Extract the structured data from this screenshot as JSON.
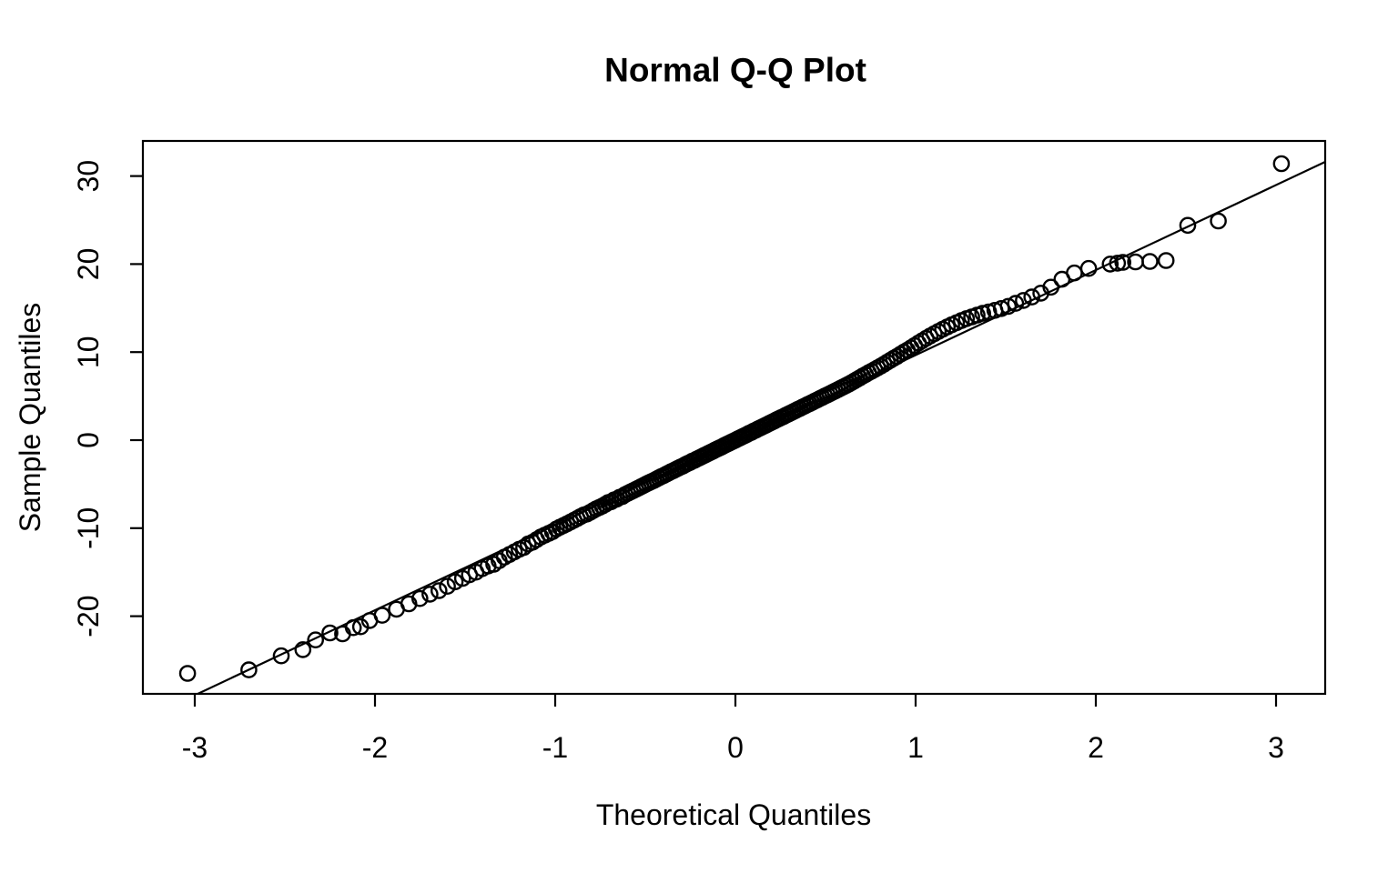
{
  "chart_data": {
    "type": "scatter",
    "title": "Normal Q-Q Plot",
    "xlabel": "Theoretical Quantiles",
    "ylabel": "Sample Quantiles",
    "x_ticks": [
      -3,
      -2,
      -1,
      0,
      1,
      2,
      3
    ],
    "y_ticks": [
      -20,
      -10,
      0,
      10,
      20,
      30
    ],
    "xlim": [
      -3.29,
      3.27
    ],
    "ylim": [
      -28.8,
      34.0
    ],
    "grid": false,
    "legend": "none",
    "marker": "open-circle",
    "colors": {
      "points": "#000000",
      "line": "#000000",
      "axes": "#000000",
      "background": "#ffffff"
    },
    "reference_line": {
      "slope": 9.66,
      "intercept": 0.0
    },
    "points": [
      [
        -3.04,
        -26.5
      ],
      [
        -2.7,
        -26.1
      ],
      [
        -2.52,
        -24.5
      ],
      [
        -2.4,
        -23.8
      ],
      [
        -2.33,
        -22.7
      ],
      [
        -2.25,
        -21.9
      ],
      [
        -2.18,
        -22.0
      ],
      [
        -2.12,
        -21.3
      ],
      [
        -2.08,
        -21.2
      ],
      [
        -2.03,
        -20.5
      ],
      [
        -1.96,
        -19.9
      ],
      [
        -1.881,
        -19.2
      ],
      [
        -1.812,
        -18.6
      ],
      [
        -1.751,
        -18.0
      ],
      [
        -1.695,
        -17.5
      ],
      [
        -1.645,
        -17.1
      ],
      [
        -1.598,
        -16.6
      ],
      [
        -1.555,
        -16.1
      ],
      [
        -1.514,
        -15.7
      ],
      [
        -1.476,
        -15.3
      ],
      [
        -1.44,
        -15.0
      ],
      [
        -1.405,
        -14.6
      ],
      [
        -1.372,
        -14.3
      ],
      [
        -1.341,
        -14.1
      ],
      [
        -1.311,
        -13.7
      ],
      [
        -1.282,
        -13.3
      ],
      [
        -1.254,
        -13.0
      ],
      [
        -1.227,
        -12.7
      ],
      [
        -1.2,
        -12.4
      ],
      [
        -1.175,
        -12.2
      ],
      [
        -1.15,
        -11.8
      ],
      [
        -1.126,
        -11.6
      ],
      [
        -1.103,
        -11.3
      ],
      [
        -1.08,
        -11.0
      ],
      [
        -1.058,
        -10.8
      ],
      [
        -1.036,
        -10.6
      ],
      [
        -1.015,
        -10.4
      ],
      [
        -0.994,
        -10.1
      ],
      [
        -0.974,
        -9.9
      ],
      [
        -0.954,
        -9.7
      ],
      [
        -0.935,
        -9.5
      ],
      [
        -0.915,
        -9.3
      ],
      [
        -0.896,
        -9.1
      ],
      [
        -0.878,
        -8.9
      ],
      [
        -0.86,
        -8.7
      ],
      [
        -0.842,
        -8.5
      ],
      [
        -0.824,
        -8.4
      ],
      [
        -0.806,
        -8.2
      ],
      [
        -0.789,
        -8.0
      ],
      [
        -0.772,
        -7.8
      ],
      [
        -0.755,
        -7.65
      ],
      [
        -0.739,
        -7.5
      ],
      [
        -0.722,
        -7.3
      ],
      [
        -0.706,
        -7.1
      ],
      [
        -0.69,
        -7.0
      ],
      [
        -0.674,
        -6.8
      ],
      [
        -0.659,
        -6.7
      ],
      [
        -0.643,
        -6.5
      ],
      [
        -0.628,
        -6.4
      ],
      [
        -0.613,
        -6.2
      ],
      [
        -0.598,
        -6.05
      ],
      [
        -0.583,
        -5.9
      ],
      [
        -0.568,
        -5.75
      ],
      [
        -0.553,
        -5.6
      ],
      [
        -0.539,
        -5.45
      ],
      [
        -0.524,
        -5.3
      ],
      [
        -0.51,
        -5.15
      ],
      [
        -0.496,
        -5.0
      ],
      [
        -0.482,
        -4.86
      ],
      [
        -0.468,
        -4.73
      ],
      [
        -0.454,
        -4.6
      ],
      [
        -0.44,
        -4.45
      ],
      [
        -0.426,
        -4.3
      ],
      [
        -0.412,
        -4.15
      ],
      [
        -0.399,
        -4.03
      ],
      [
        -0.385,
        -3.88
      ],
      [
        -0.372,
        -3.75
      ],
      [
        -0.358,
        -3.6
      ],
      [
        -0.345,
        -3.48
      ],
      [
        -0.332,
        -3.34
      ],
      [
        -0.319,
        -3.2
      ],
      [
        -0.305,
        -3.07
      ],
      [
        -0.292,
        -2.94
      ],
      [
        -0.279,
        -2.8
      ],
      [
        -0.266,
        -2.67
      ],
      [
        -0.253,
        -2.55
      ],
      [
        -0.24,
        -2.4
      ],
      [
        -0.228,
        -2.3
      ],
      [
        -0.215,
        -2.16
      ],
      [
        -0.202,
        -2.03
      ],
      [
        -0.189,
        -1.9
      ],
      [
        -0.176,
        -1.77
      ],
      [
        -0.164,
        -1.65
      ],
      [
        -0.151,
        -1.52
      ],
      [
        -0.138,
        -1.38
      ],
      [
        -0.126,
        -1.27
      ],
      [
        -0.113,
        -1.13
      ],
      [
        -0.1,
        -1.0
      ],
      [
        -0.088,
        -0.88
      ],
      [
        -0.075,
        -0.76
      ],
      [
        -0.063,
        -0.63
      ],
      [
        -0.05,
        -0.5
      ],
      [
        -0.038,
        -0.38
      ],
      [
        -0.025,
        -0.25
      ],
      [
        -0.013,
        -0.13
      ],
      [
        0.0,
        0.0
      ],
      [
        0.013,
        0.13
      ],
      [
        0.025,
        0.25
      ],
      [
        0.038,
        0.38
      ],
      [
        0.05,
        0.5
      ],
      [
        0.063,
        0.63
      ],
      [
        0.075,
        0.76
      ],
      [
        0.088,
        0.88
      ],
      [
        0.1,
        1.01
      ],
      [
        0.113,
        1.13
      ],
      [
        0.126,
        1.27
      ],
      [
        0.138,
        1.38
      ],
      [
        0.151,
        1.52
      ],
      [
        0.164,
        1.65
      ],
      [
        0.176,
        1.77
      ],
      [
        0.189,
        1.9
      ],
      [
        0.202,
        2.03
      ],
      [
        0.215,
        2.16
      ],
      [
        0.228,
        2.3
      ],
      [
        0.24,
        2.42
      ],
      [
        0.253,
        2.55
      ],
      [
        0.266,
        2.67
      ],
      [
        0.279,
        2.81
      ],
      [
        0.292,
        2.93
      ],
      [
        0.305,
        3.07
      ],
      [
        0.319,
        3.21
      ],
      [
        0.332,
        3.34
      ],
      [
        0.345,
        3.48
      ],
      [
        0.358,
        3.6
      ],
      [
        0.372,
        3.75
      ],
      [
        0.385,
        3.87
      ],
      [
        0.399,
        4.02
      ],
      [
        0.412,
        4.14
      ],
      [
        0.426,
        4.29
      ],
      [
        0.44,
        4.43
      ],
      [
        0.454,
        4.57
      ],
      [
        0.468,
        4.72
      ],
      [
        0.482,
        4.85
      ],
      [
        0.496,
        5.0
      ],
      [
        0.51,
        5.13
      ],
      [
        0.524,
        5.28
      ],
      [
        0.539,
        5.43
      ],
      [
        0.553,
        5.58
      ],
      [
        0.568,
        5.73
      ],
      [
        0.583,
        5.89
      ],
      [
        0.598,
        6.04
      ],
      [
        0.613,
        6.2
      ],
      [
        0.628,
        6.35
      ],
      [
        0.643,
        6.52
      ],
      [
        0.659,
        6.7
      ],
      [
        0.674,
        6.89
      ],
      [
        0.69,
        7.08
      ],
      [
        0.706,
        7.27
      ],
      [
        0.722,
        7.45
      ],
      [
        0.739,
        7.65
      ],
      [
        0.755,
        7.82
      ],
      [
        0.772,
        8.02
      ],
      [
        0.789,
        8.21
      ],
      [
        0.806,
        8.4
      ],
      [
        0.824,
        8.63
      ],
      [
        0.842,
        8.85
      ],
      [
        0.86,
        9.07
      ],
      [
        0.878,
        9.29
      ],
      [
        0.896,
        9.5
      ],
      [
        0.915,
        9.75
      ],
      [
        0.935,
        10.0
      ],
      [
        0.954,
        10.23
      ],
      [
        0.974,
        10.49
      ],
      [
        0.994,
        10.74
      ],
      [
        1.015,
        11.02
      ],
      [
        1.036,
        11.28
      ],
      [
        1.058,
        11.56
      ],
      [
        1.08,
        11.82
      ],
      [
        1.103,
        12.09
      ],
      [
        1.126,
        12.34
      ],
      [
        1.15,
        12.6
      ],
      [
        1.175,
        12.86
      ],
      [
        1.2,
        13.1
      ],
      [
        1.227,
        13.34
      ],
      [
        1.254,
        13.57
      ],
      [
        1.282,
        13.8
      ],
      [
        1.311,
        14.0
      ],
      [
        1.341,
        14.2
      ],
      [
        1.372,
        14.4
      ],
      [
        1.405,
        14.57
      ],
      [
        1.44,
        14.74
      ],
      [
        1.476,
        14.95
      ],
      [
        1.514,
        15.2
      ],
      [
        1.555,
        15.54
      ],
      [
        1.598,
        15.87
      ],
      [
        1.645,
        16.26
      ],
      [
        1.695,
        16.69
      ],
      [
        1.751,
        17.38
      ],
      [
        1.812,
        18.27
      ],
      [
        1.881,
        18.99
      ],
      [
        1.96,
        19.5
      ],
      [
        2.08,
        20.0
      ],
      [
        2.12,
        20.1
      ],
      [
        2.15,
        20.2
      ],
      [
        2.22,
        20.25
      ],
      [
        2.3,
        20.3
      ],
      [
        2.39,
        20.4
      ],
      [
        2.51,
        24.4
      ],
      [
        2.68,
        24.9
      ],
      [
        3.03,
        31.4
      ]
    ]
  }
}
